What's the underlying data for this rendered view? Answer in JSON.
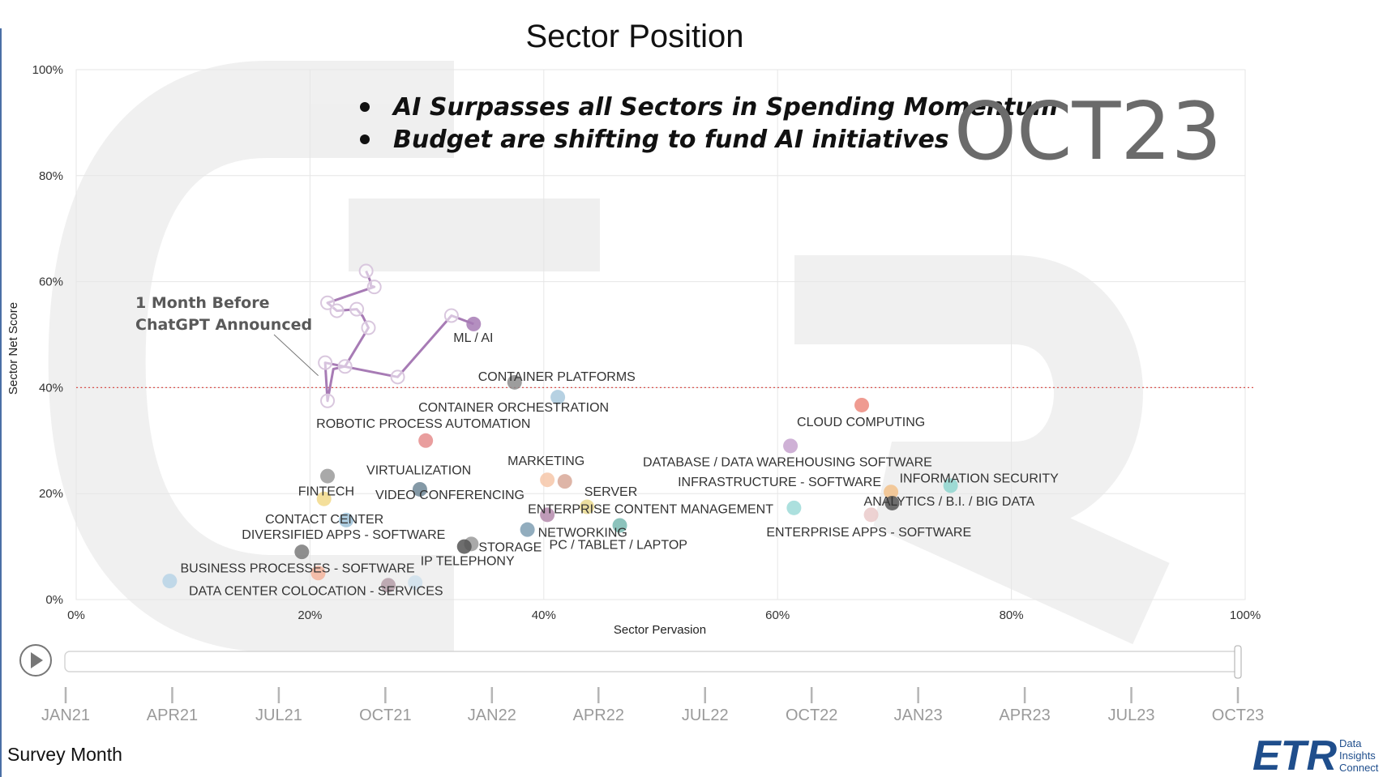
{
  "title": "Sector Position",
  "annotations": [
    "AI Surpasses all Sectors in Spending Momentum",
    "Budget are shifting to fund AI initiatives"
  ],
  "current_month": "OCT23",
  "callout": [
    "1 Month Before",
    "ChatGPT Announced"
  ],
  "survey_month_label": "Survey Month",
  "logo": {
    "text": "ETR",
    "tagline": [
      "Data",
      "Insights",
      "Connect"
    ]
  },
  "colors": {
    "trail": "#a77bb5",
    "reference_line": "#d9534f",
    "accent": "#1f4e8c"
  },
  "timeline": {
    "months": [
      "JAN21",
      "APR21",
      "JUL21",
      "OCT21",
      "JAN22",
      "APR22",
      "JUL22",
      "OCT22",
      "JAN23",
      "APR23",
      "JUL23",
      "OCT23"
    ],
    "position_fraction": 1.0,
    "play_icon": "play-icon"
  },
  "chart_data": {
    "type": "scatter",
    "title": "Sector Position",
    "xlabel": "Sector Pervasion",
    "ylabel": "Sector Net Score",
    "xlim": [
      0,
      100
    ],
    "ylim": [
      0,
      100
    ],
    "x_ticks": [
      "0%",
      "20%",
      "40%",
      "60%",
      "80%",
      "100%"
    ],
    "y_ticks": [
      "0%",
      "20%",
      "40%",
      "60%",
      "80%",
      "100%"
    ],
    "grid": true,
    "reference_line_y": 40,
    "points": [
      {
        "label": "ML / AI",
        "x": 34.0,
        "y": 52.0,
        "color": "#a77bb5"
      },
      {
        "label": "CONTAINER PLATFORMS",
        "x": 37.5,
        "y": 41.0,
        "color": "#8c8c8c"
      },
      {
        "label": "CONTAINER ORCHESTRATION",
        "x": 41.2,
        "y": 38.2,
        "color": "#a9c9dd"
      },
      {
        "label": "ROBOTIC PROCESS AUTOMATION",
        "x": 29.9,
        "y": 30.0,
        "color": "#e58d8d"
      },
      {
        "label": "CLOUD COMPUTING",
        "x": 67.2,
        "y": 36.7,
        "color": "#ec8a7e"
      },
      {
        "label": "DATABASE / DATA WAREHOUSING SOFTWARE",
        "x": 61.1,
        "y": 29.0,
        "color": "#c7a3cf"
      },
      {
        "label": "INFRASTRUCTURE - SOFTWARE",
        "x": 69.7,
        "y": 20.3,
        "color": "#f2c18a"
      },
      {
        "label": "INFORMATION SECURITY",
        "x": 74.8,
        "y": 21.5,
        "color": "#8fd6cf"
      },
      {
        "label": "ANALYTICS / B.I. / BIG DATA",
        "x": 69.8,
        "y": 18.2,
        "color": "#555555"
      },
      {
        "label": "ENTERPRISE APPS - SOFTWARE",
        "x": 61.4,
        "y": 17.3,
        "color": "#9edbd8"
      },
      {
        "label": "VIRTUALIZATION",
        "x": 21.5,
        "y": 23.3,
        "color": "#9a9a9a"
      },
      {
        "label": "FINTECH",
        "x": 21.2,
        "y": 19.0,
        "color": "#f2d98a"
      },
      {
        "label": "VIDEO CONFERENCING",
        "x": 29.4,
        "y": 20.8,
        "color": "#6f8797"
      },
      {
        "label": "MARKETING",
        "x": 40.3,
        "y": 22.6,
        "color": "#f6c7a9"
      },
      {
        "label": "SERVER",
        "x": 41.8,
        "y": 22.3,
        "color": "#d8a898"
      },
      {
        "label": "ENTERPRISE CONTENT MANAGEMENT",
        "x": 43.7,
        "y": 17.5,
        "color": "#e9d98f"
      },
      {
        "label": "CONTACT CENTER",
        "x": 23.1,
        "y": 15.0,
        "color": "#9ec2d8"
      },
      {
        "label": "DIVERSIFIED APPS - SOFTWARE",
        "x": 19.3,
        "y": 9.0,
        "color": "#7a7a7a"
      },
      {
        "label": "NETWORKING",
        "x": 38.6,
        "y": 13.2,
        "color": "#7f9fb3"
      },
      {
        "label": "STORAGE",
        "x": 33.8,
        "y": 10.5,
        "color": "#9a9a9a"
      },
      {
        "label": "PC / TABLET / LAPTOP",
        "x": 46.5,
        "y": 14.0,
        "color": "#78b8b0"
      },
      {
        "label": "IP TELEPHONY",
        "x": 33.2,
        "y": 10.0,
        "color": "#555555"
      },
      {
        "label": "BUSINESS PROCESSES - SOFTWARE",
        "x": 20.7,
        "y": 5.0,
        "color": "#f3b49c"
      },
      {
        "label": "DATA CENTER COLOCATION - SERVICES",
        "x": 26.7,
        "y": 2.7,
        "color": "#b59ea8"
      },
      {
        "label": "",
        "x": 8.0,
        "y": 3.5,
        "color": "#b7d4e6"
      },
      {
        "label": "",
        "x": 29.0,
        "y": 3.2,
        "color": "#cfe0ec"
      },
      {
        "label": "",
        "x": 40.3,
        "y": 16.0,
        "color": "#b48aab"
      },
      {
        "label": "",
        "x": 68.0,
        "y": 16.0,
        "color": "#eacaca"
      }
    ],
    "ml_ai_trail": [
      [
        24.8,
        62.0
      ],
      [
        25.0,
        61.0
      ],
      [
        25.2,
        59.8
      ],
      [
        25.2,
        59.2
      ],
      [
        25.5,
        59.0
      ],
      [
        21.5,
        56.0
      ],
      [
        22.3,
        54.5
      ],
      [
        24.0,
        54.8
      ],
      [
        24.5,
        53.5
      ],
      [
        25.0,
        51.3
      ],
      [
        23.0,
        44.0
      ],
      [
        22.0,
        43.5
      ],
      [
        21.5,
        37.5
      ],
      [
        21.3,
        44.7
      ],
      [
        27.5,
        42.0
      ],
      [
        32.1,
        53.6
      ],
      [
        34.0,
        52.0
      ]
    ],
    "trail_markers": [
      [
        24.8,
        62.0
      ],
      [
        25.5,
        59.0
      ],
      [
        21.5,
        56.0
      ],
      [
        22.3,
        54.5
      ],
      [
        24.0,
        54.8
      ],
      [
        25.0,
        51.3
      ],
      [
        23.0,
        44.0
      ],
      [
        21.3,
        44.7
      ],
      [
        21.5,
        37.5
      ],
      [
        27.5,
        42.0
      ],
      [
        32.1,
        53.6
      ]
    ],
    "callout_target": [
      20.5,
      39.5
    ]
  }
}
